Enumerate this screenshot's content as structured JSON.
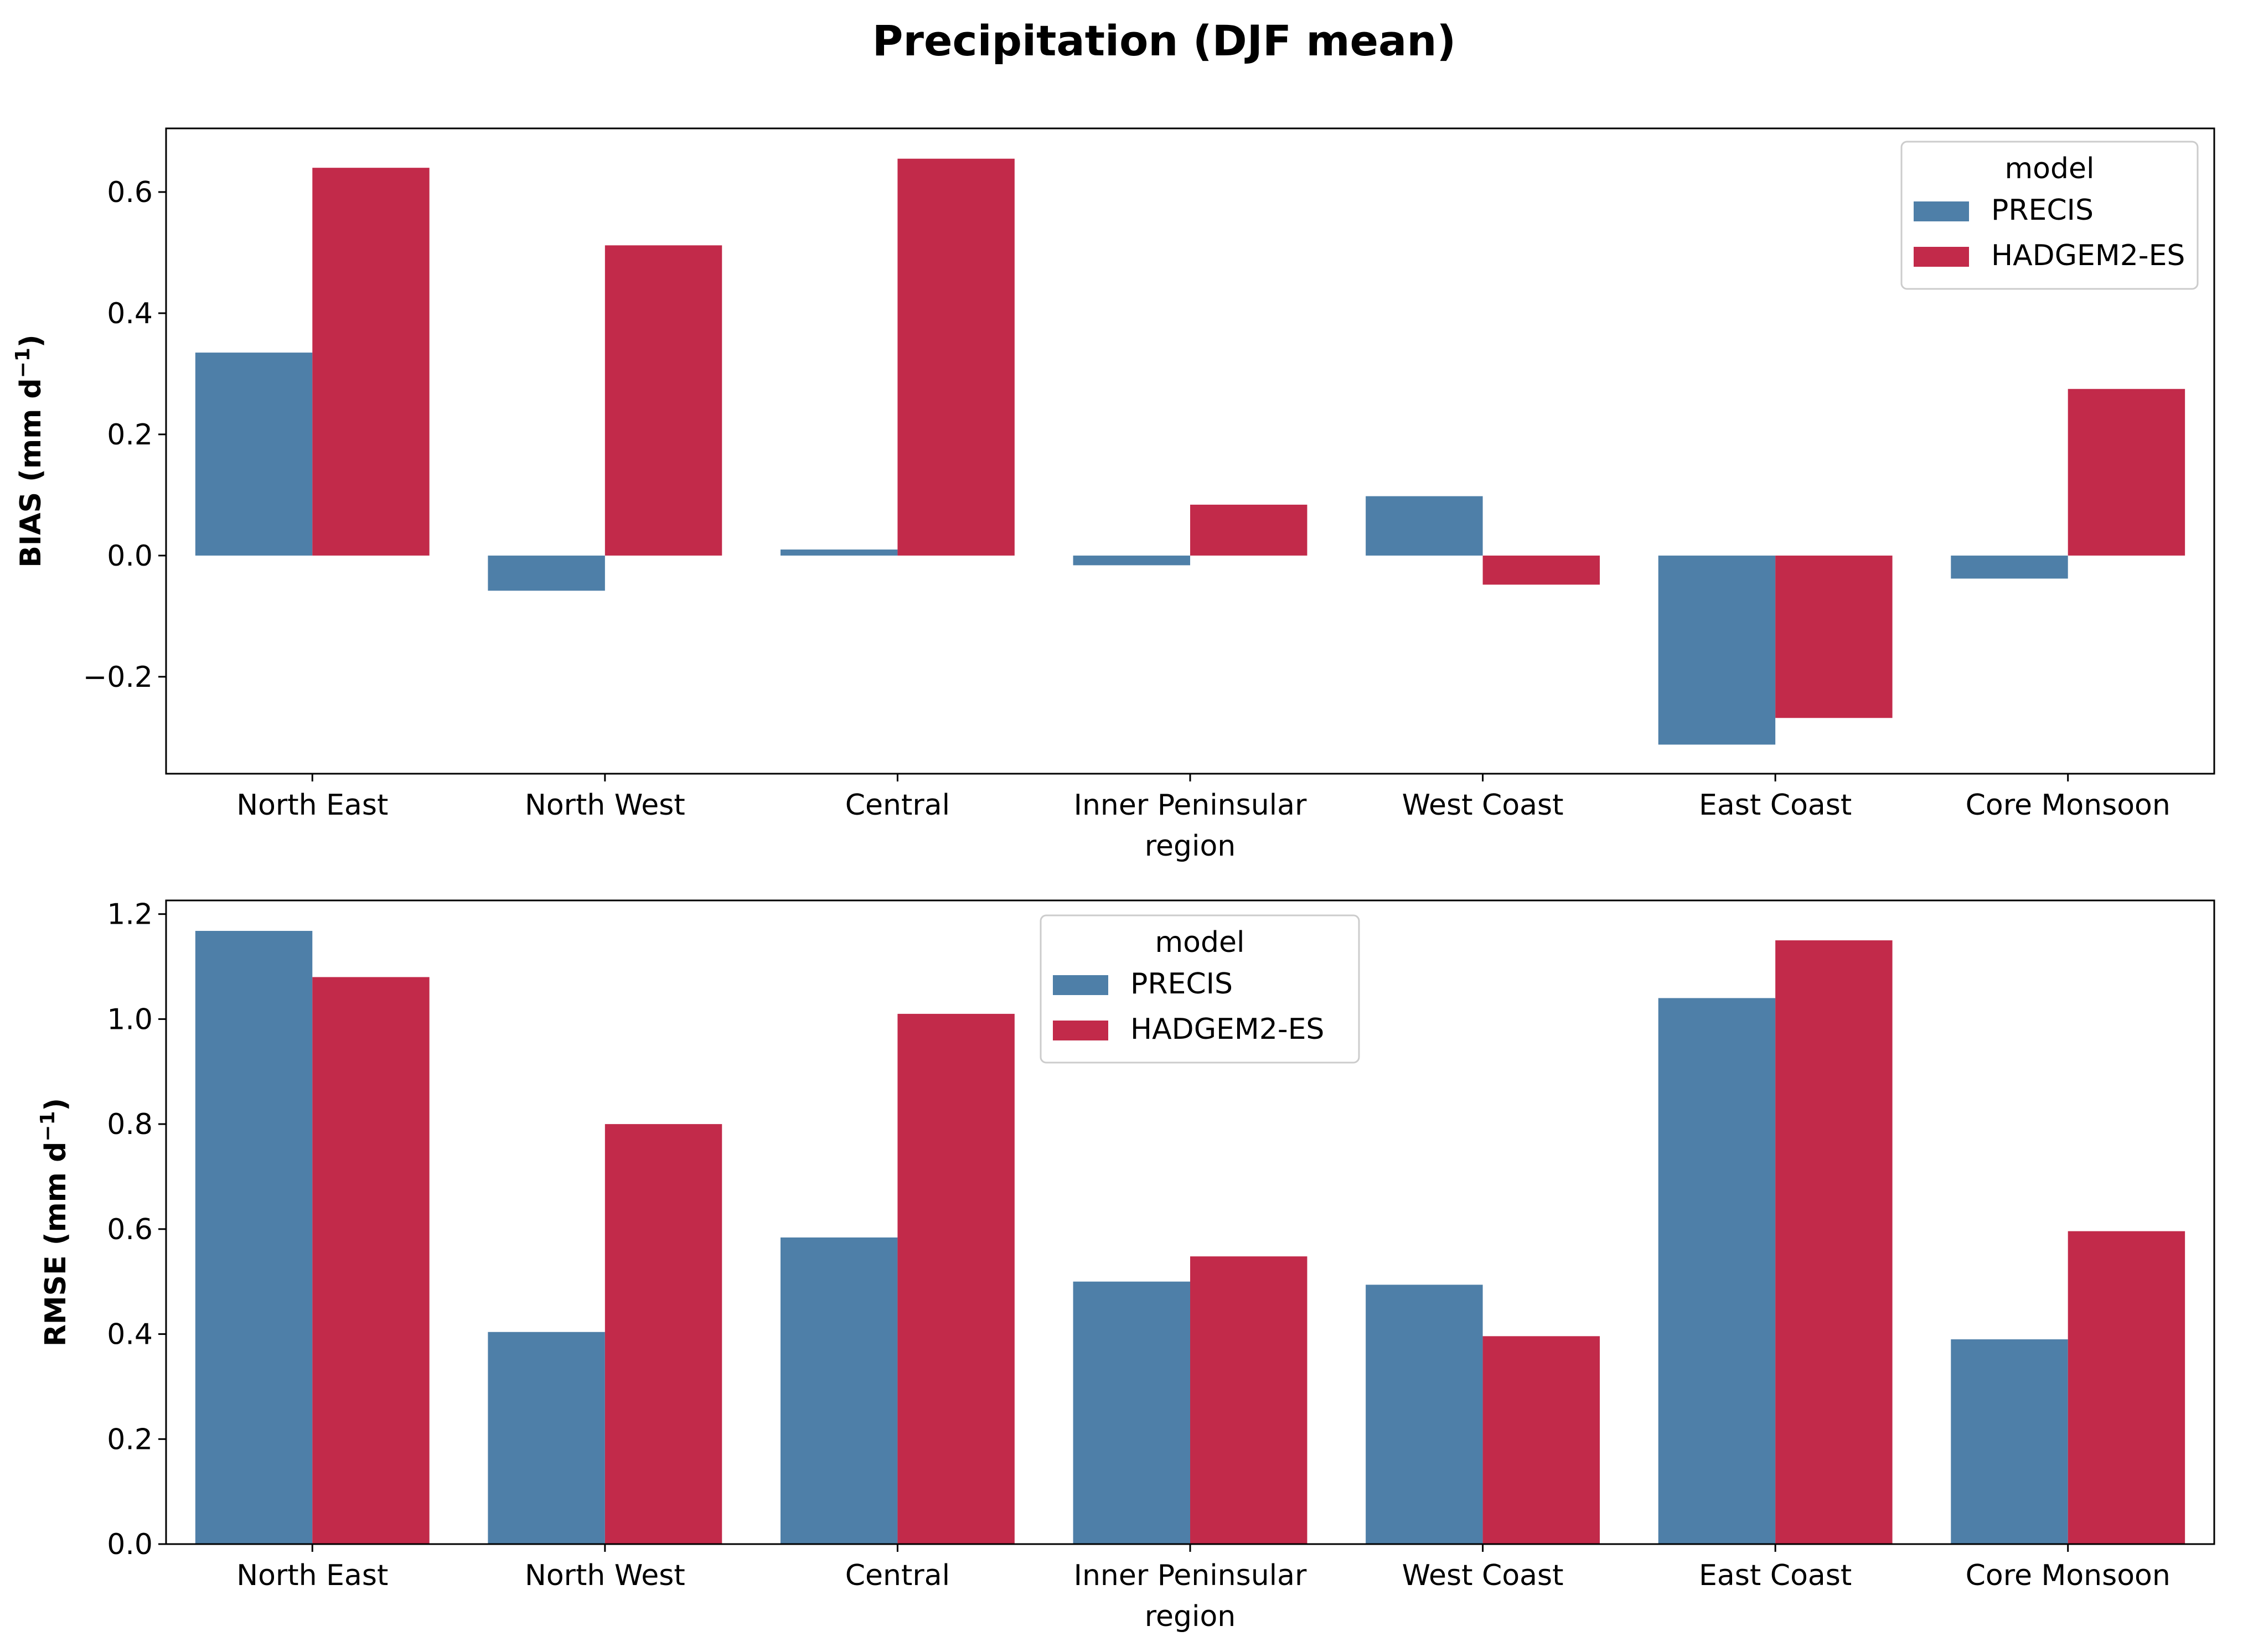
{
  "figure": {
    "title": "Precipitation (DJF mean)"
  },
  "chart_data": [
    {
      "type": "bar",
      "title": "",
      "xlabel": "region",
      "ylabel": "BIAS (mm d",
      "ylabel_superscript": "−1",
      "ylabel_close": ")",
      "categories": [
        "North East",
        "North West",
        "Central",
        "Inner Peninsular",
        "West Coast",
        "East Coast",
        "Core Monsoon"
      ],
      "series": [
        {
          "name": "PRECIS",
          "color": "#4e7fa8",
          "values": [
            0.335,
            -0.058,
            0.01,
            -0.016,
            0.098,
            -0.312,
            -0.038
          ]
        },
        {
          "name": "HADGEM2-ES",
          "color": "#c22a4a",
          "values": [
            0.64,
            0.512,
            0.655,
            0.084,
            -0.048,
            -0.268,
            0.275
          ]
        }
      ],
      "ylim": [
        -0.36,
        0.705
      ],
      "yticks": [
        -0.2,
        0.0,
        0.2,
        0.4,
        0.6
      ],
      "ytick_labels": [
        "−0.2",
        "0.0",
        "0.2",
        "0.4",
        "0.6"
      ],
      "grid": false,
      "legend": {
        "title": "model",
        "placement": "upper right"
      }
    },
    {
      "type": "bar",
      "title": "",
      "xlabel": "region",
      "ylabel": "RMSE (mm d",
      "ylabel_superscript": "−1",
      "ylabel_close": ")",
      "categories": [
        "North East",
        "North West",
        "Central",
        "Inner Peninsular",
        "West Coast",
        "East Coast",
        "Core Monsoon"
      ],
      "series": [
        {
          "name": "PRECIS",
          "color": "#4e7fa8",
          "values": [
            1.168,
            0.404,
            0.584,
            0.5,
            0.494,
            1.04,
            0.39
          ]
        },
        {
          "name": "HADGEM2-ES",
          "color": "#c22a4a",
          "values": [
            1.08,
            0.8,
            1.01,
            0.548,
            0.396,
            1.15,
            0.596
          ]
        }
      ],
      "ylim": [
        0.0,
        1.226
      ],
      "yticks": [
        0.0,
        0.2,
        0.4,
        0.6,
        0.8,
        1.0,
        1.2
      ],
      "ytick_labels": [
        "0.0",
        "0.2",
        "0.4",
        "0.6",
        "0.8",
        "1.0",
        "1.2"
      ],
      "grid": false,
      "legend": {
        "title": "model",
        "placement": "upper center"
      }
    }
  ]
}
